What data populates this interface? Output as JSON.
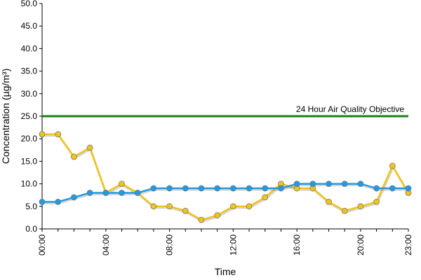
{
  "chart_data": {
    "type": "line",
    "xlabel": "Time",
    "ylabel": "Concentration (µg/m³)",
    "categories": [
      "00:00",
      null,
      null,
      null,
      "04:00",
      null,
      null,
      null,
      "08:00",
      null,
      null,
      null,
      "12:00",
      null,
      null,
      null,
      "16:00",
      null,
      null,
      null,
      "20:00",
      null,
      null,
      "23:00"
    ],
    "series": [
      {
        "color": "#f0c419",
        "values": [
          21,
          21,
          16,
          18,
          8,
          10,
          8,
          5,
          5,
          4,
          2,
          3,
          5,
          5,
          7,
          10,
          9,
          9,
          6,
          4,
          5,
          6,
          14,
          8
        ]
      },
      {
        "color": "#1e9be8",
        "values": [
          6,
          6,
          7,
          8,
          8,
          8,
          8,
          9,
          9,
          9,
          9,
          9,
          9,
          9,
          9,
          9,
          10,
          10,
          10,
          10,
          10,
          9,
          9,
          9
        ]
      }
    ],
    "objective": {
      "value": 25,
      "label": "24 Hour Air Quality Objective",
      "color": "#1a7f1a"
    },
    "ylim": [
      0,
      50
    ],
    "yticks": [
      {
        "value": 0,
        "label": "0.0"
      },
      {
        "value": 5,
        "label": "5.0"
      },
      {
        "value": 10,
        "label": "10.0"
      },
      {
        "value": 15,
        "label": "15.0"
      },
      {
        "value": 20,
        "label": "20.0"
      },
      {
        "value": 25,
        "label": "25.0"
      },
      {
        "value": 30,
        "label": "30.0"
      },
      {
        "value": 35,
        "label": "35.0"
      },
      {
        "value": 40,
        "label": "40.0"
      },
      {
        "value": 45,
        "label": "45.0"
      },
      {
        "value": 50,
        "label": "50.0"
      }
    ]
  }
}
